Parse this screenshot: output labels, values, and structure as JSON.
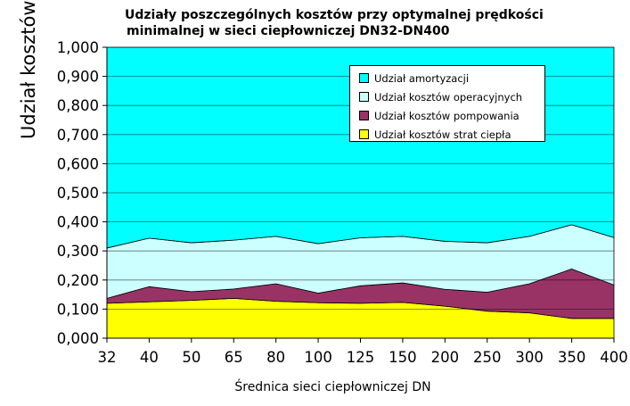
{
  "chart_data": {
    "type": "area",
    "stacked": true,
    "title": "Udziały poszczególnych kosztów przy optymalnej prędkości minimalnej  w sieci ciepłowniczej DN32-DN400",
    "title_lines": [
      "Udziały poszczególnych kosztów przy optymalnej prędkości",
      "minimalnej  w sieci ciepłowniczej DN32-DN400"
    ],
    "xlabel": "Średnica sieci ciepłowniczej DN",
    "ylabel": "Udział kosztów",
    "ylim": [
      0,
      1
    ],
    "yticks": [
      "0,000",
      "0,100",
      "0,200",
      "0,300",
      "0,400",
      "0,500",
      "0,600",
      "0,700",
      "0,800",
      "0,900",
      "1,000"
    ],
    "categories": [
      "32",
      "40",
      "50",
      "65",
      "80",
      "100",
      "125",
      "150",
      "200",
      "250",
      "300",
      "350",
      "400"
    ],
    "grid": true,
    "legend_position": "top-right",
    "series": [
      {
        "name": "Udział kosztów strat ciepła",
        "color": "#ffff00",
        "values": [
          0.12,
          0.125,
          0.13,
          0.137,
          0.127,
          0.122,
          0.12,
          0.123,
          0.11,
          0.093,
          0.087,
          0.068,
          0.068
        ]
      },
      {
        "name": "Udział kosztów pompowania",
        "color": "#993366",
        "values": [
          0.017,
          0.052,
          0.03,
          0.032,
          0.06,
          0.033,
          0.06,
          0.067,
          0.058,
          0.065,
          0.1,
          0.17,
          0.115
        ]
      },
      {
        "name": "Udział kosztów operacyjnych",
        "color": "#ccffff",
        "values": [
          0.173,
          0.167,
          0.168,
          0.168,
          0.163,
          0.17,
          0.165,
          0.16,
          0.165,
          0.17,
          0.163,
          0.152,
          0.163
        ]
      },
      {
        "name": "Udział amortyzacji",
        "color": "#00ffff",
        "values": [
          0.69,
          0.656,
          0.672,
          0.663,
          0.65,
          0.675,
          0.655,
          0.65,
          0.667,
          0.672,
          0.65,
          0.61,
          0.654
        ]
      }
    ]
  }
}
